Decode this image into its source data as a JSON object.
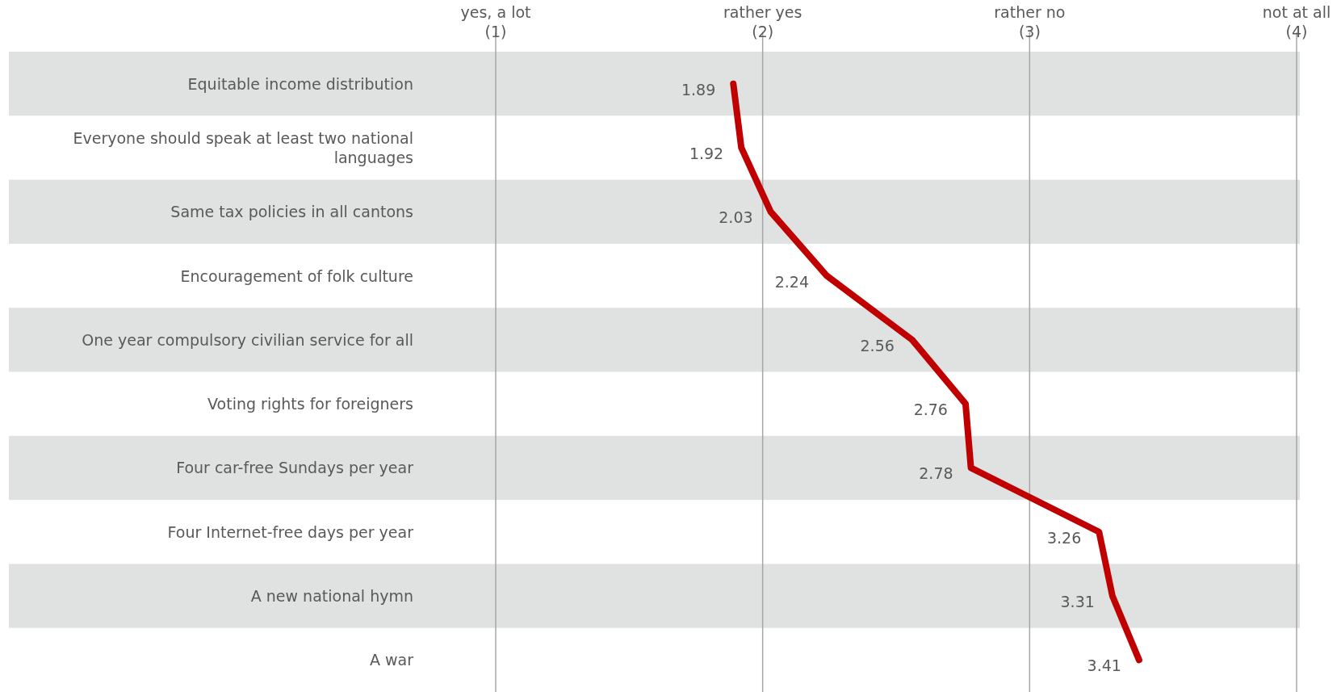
{
  "chart_data": {
    "type": "line",
    "orientation": "horizontal",
    "categories": [
      "Equitable income distribution",
      "Everyone should speak at least two national languages",
      "Same tax policies in all cantons",
      "Encouragement of folk culture",
      "One year compulsory civilian service for all",
      "Voting rights for foreigners",
      "Four car-free Sundays per year",
      "Four Internet-free days per year",
      "A new national hymn",
      "A war"
    ],
    "series": [
      {
        "color": "#c00000",
        "values": [
          1.89,
          1.92,
          2.03,
          2.24,
          2.56,
          2.76,
          2.78,
          3.26,
          3.31,
          3.41
        ]
      }
    ],
    "xlim": [
      1,
      4
    ],
    "xticks": [
      {
        "value": 1,
        "label": "yes, a lot\n(1)"
      },
      {
        "value": 2,
        "label": "rather yes\n(2)"
      },
      {
        "value": 3,
        "label": "rather no\n(3)"
      },
      {
        "value": 4,
        "label": "not at all\n(4)"
      }
    ],
    "grid": "x",
    "data_labels": true,
    "marker": "none",
    "line_style": "solid"
  }
}
